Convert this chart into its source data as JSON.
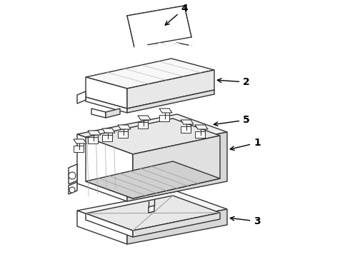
{
  "background_color": "#ffffff",
  "line_color": "#333333",
  "line_width": 1.0,
  "label_fontsize": 10,
  "figsize": [
    4.9,
    3.6
  ],
  "dpi": 100
}
